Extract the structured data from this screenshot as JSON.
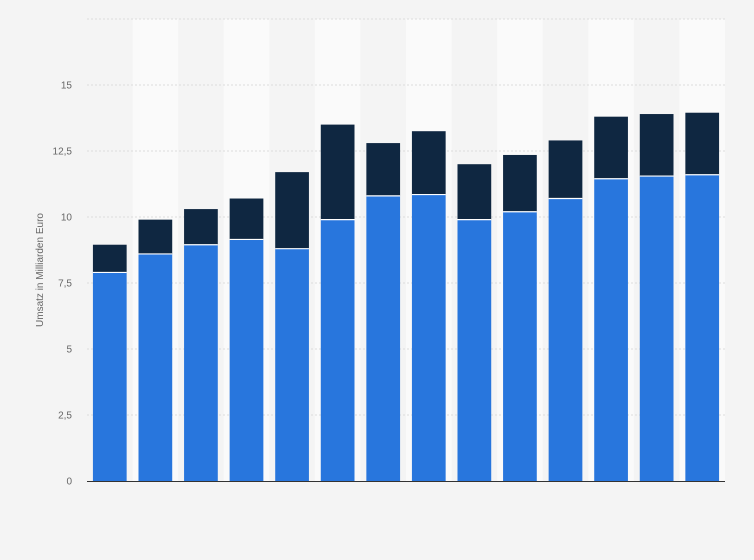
{
  "chart_data": {
    "type": "bar",
    "stacked": true,
    "title": "",
    "xlabel": "",
    "ylabel": "Umsatz in Milliarden Euro",
    "ylim": [
      0,
      17.5
    ],
    "y_ticks": [
      {
        "value": 0,
        "label": "0"
      },
      {
        "value": 2.5,
        "label": "2,5"
      },
      {
        "value": 5,
        "label": "5"
      },
      {
        "value": 7.5,
        "label": "7,5"
      },
      {
        "value": 10,
        "label": "10"
      },
      {
        "value": 12.5,
        "label": "12,5"
      },
      {
        "value": 15,
        "label": "15"
      },
      {
        "value": 17.5,
        "label": ""
      }
    ],
    "grid": true,
    "legend": "none",
    "categories": [
      "",
      "",
      "",
      "",
      "",
      "",
      "",
      "",
      "",
      "",
      "",
      "",
      "",
      ""
    ],
    "series": [
      {
        "color": "#2876dd",
        "values": [
          7.9,
          8.6,
          8.95,
          9.15,
          8.8,
          9.9,
          10.8,
          10.85,
          9.9,
          10.2,
          10.7,
          11.45,
          11.55,
          11.6
        ]
      },
      {
        "color": "#0f2741",
        "values": [
          1.05,
          1.3,
          1.35,
          1.55,
          2.9,
          3.6,
          2.0,
          2.4,
          2.1,
          2.15,
          2.2,
          2.35,
          2.35,
          2.35
        ]
      }
    ]
  }
}
